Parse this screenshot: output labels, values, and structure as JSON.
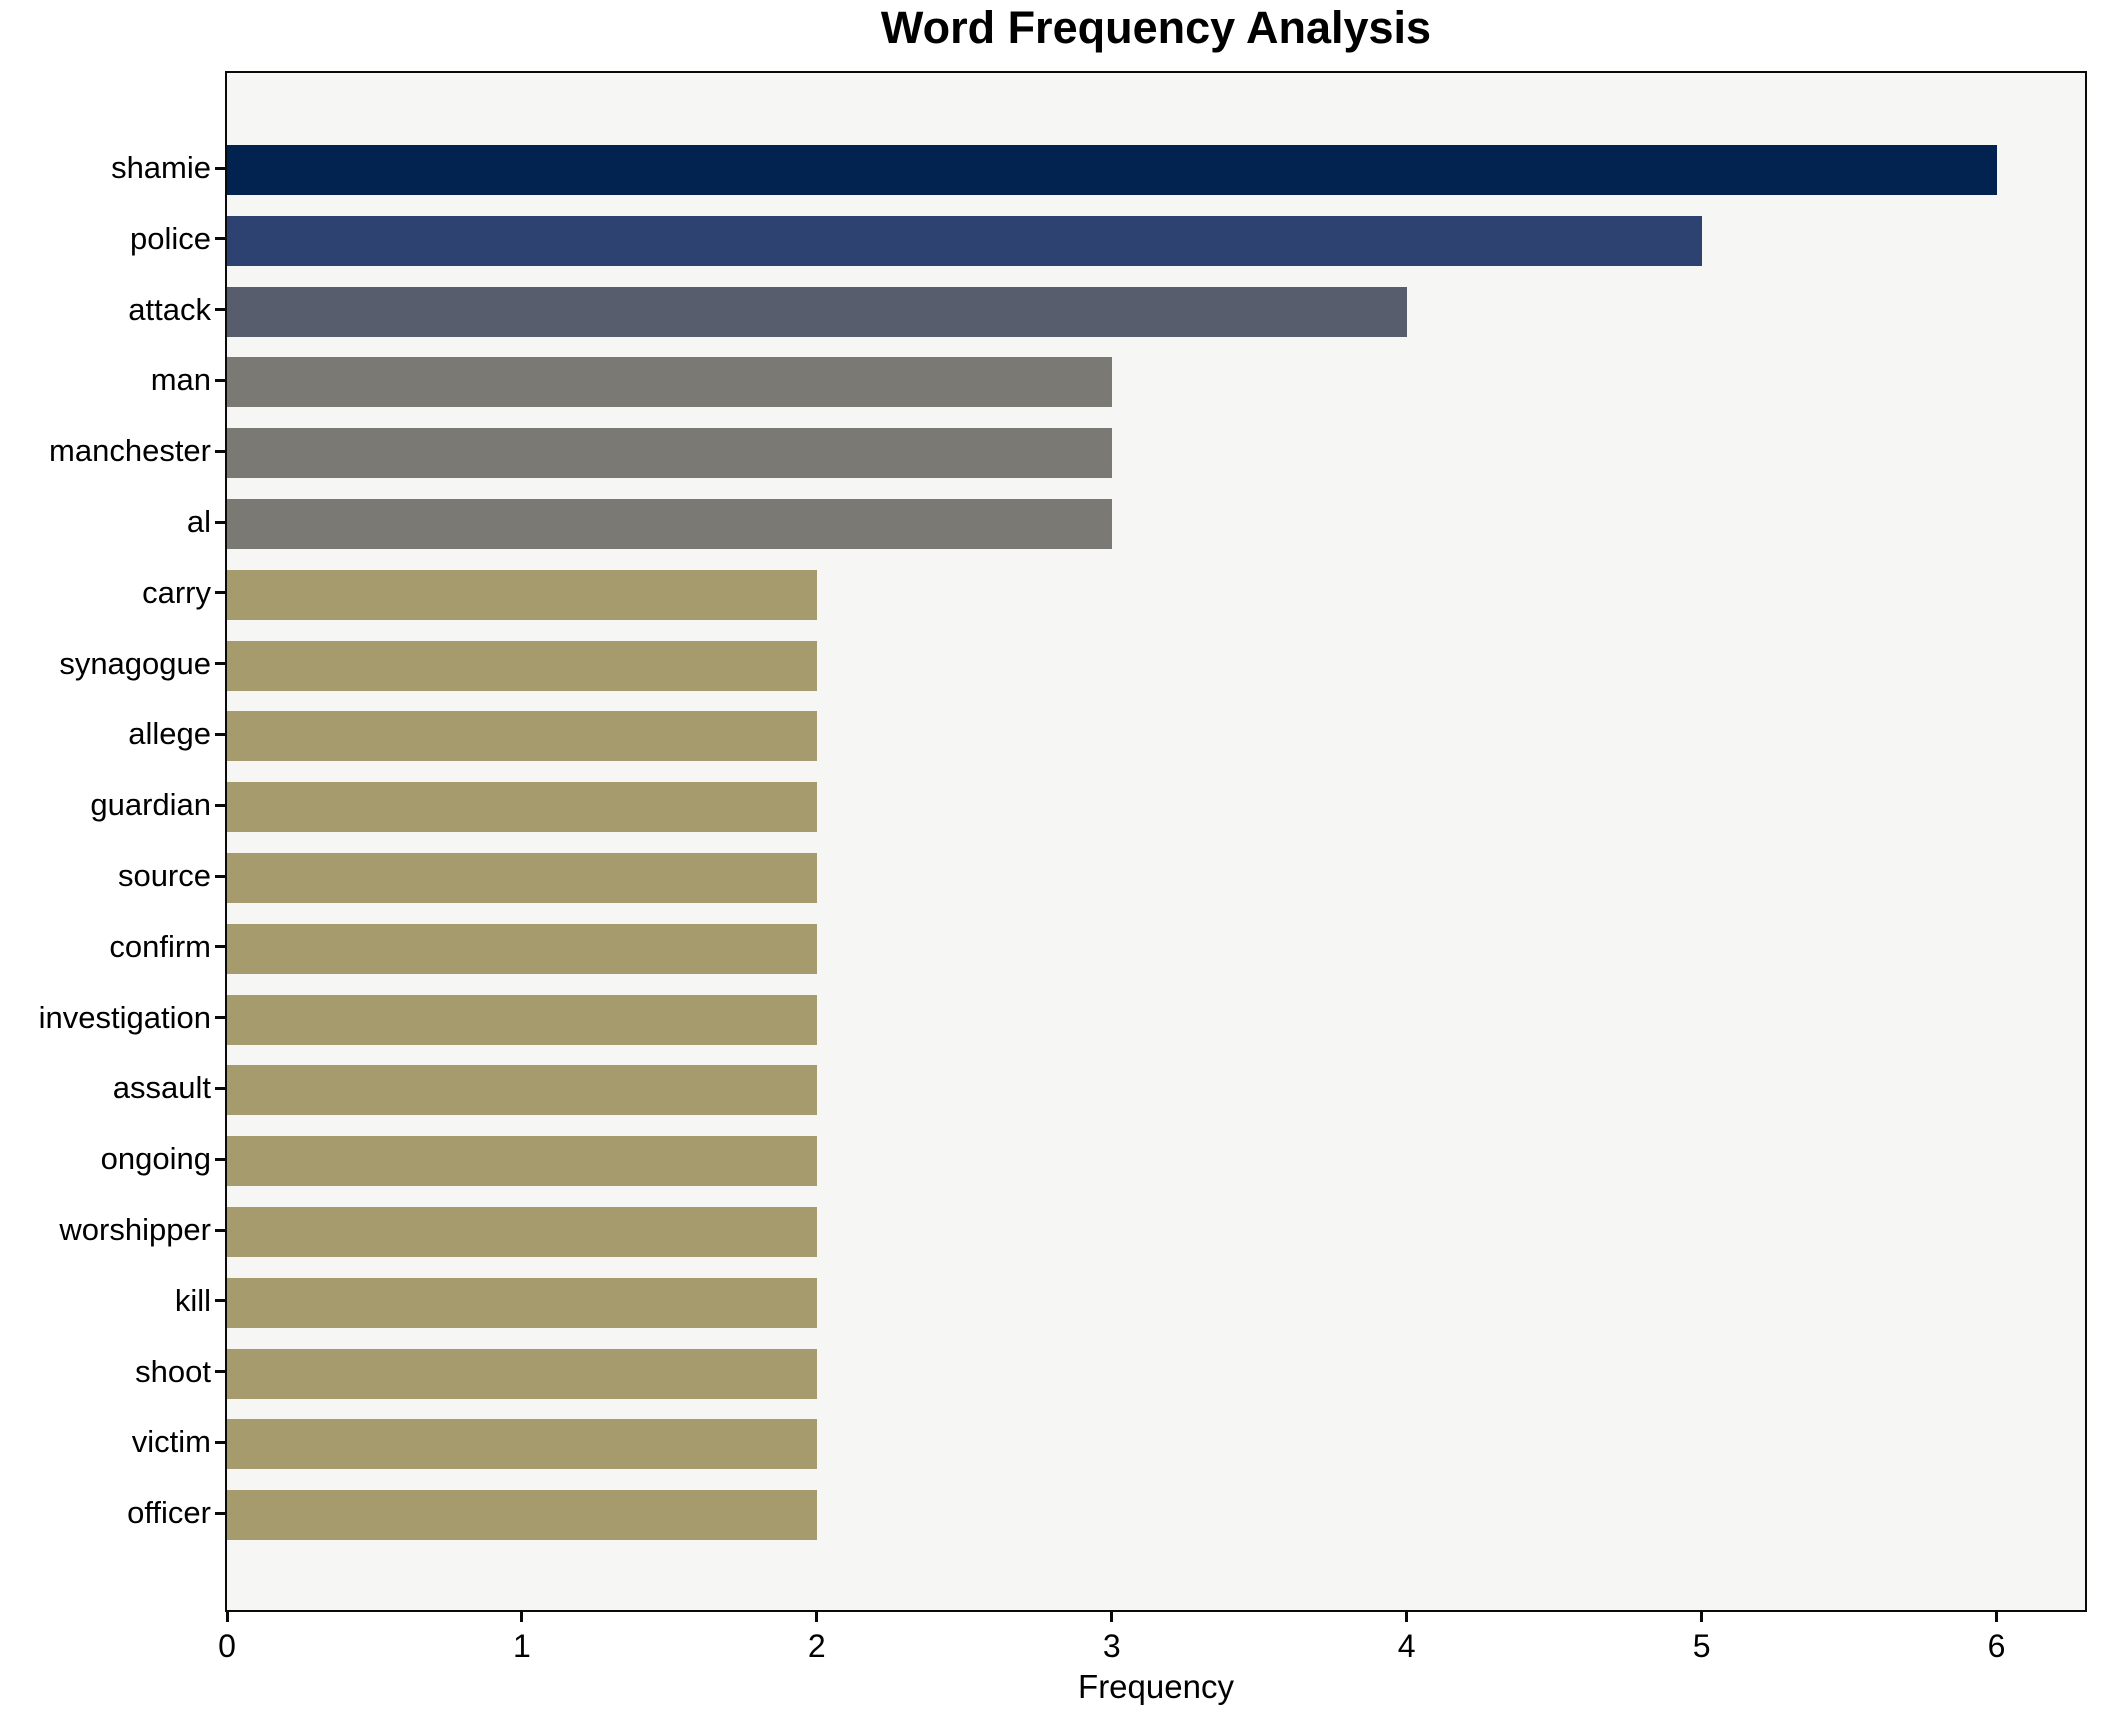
{
  "chart_data": {
    "type": "bar",
    "orientation": "horizontal",
    "title": "Word Frequency Analysis",
    "xlabel": "Frequency",
    "ylabel": "",
    "grid": false,
    "legend": false,
    "xlim": [
      0,
      6.3
    ],
    "x_ticks": [
      0,
      1,
      2,
      3,
      4,
      5,
      6
    ],
    "categories": [
      "shamie",
      "police",
      "attack",
      "man",
      "manchester",
      "al",
      "carry",
      "synagogue",
      "allege",
      "guardian",
      "source",
      "confirm",
      "investigation",
      "assault",
      "ongoing",
      "worshipper",
      "kill",
      "shoot",
      "victim",
      "officer"
    ],
    "values": [
      6,
      5,
      4,
      3,
      3,
      3,
      2,
      2,
      2,
      2,
      2,
      2,
      2,
      2,
      2,
      2,
      2,
      2,
      2,
      2
    ],
    "bar_colors": [
      "#022350",
      "#2e4271",
      "#575d6d",
      "#7a7974",
      "#7a7974",
      "#7a7974",
      "#a59b6c",
      "#a59b6c",
      "#a59b6c",
      "#a59b6c",
      "#a59b6c",
      "#a59b6c",
      "#a59b6c",
      "#a59b6c",
      "#a59b6c",
      "#a59b6c",
      "#a59b6c",
      "#a59b6c",
      "#a59b6c",
      "#a59b6c"
    ]
  },
  "colors": {
    "figure_background": "#ffffff",
    "plot_background": "#f6f6f4",
    "spine": "#0a0a0a",
    "text": "#000000"
  }
}
